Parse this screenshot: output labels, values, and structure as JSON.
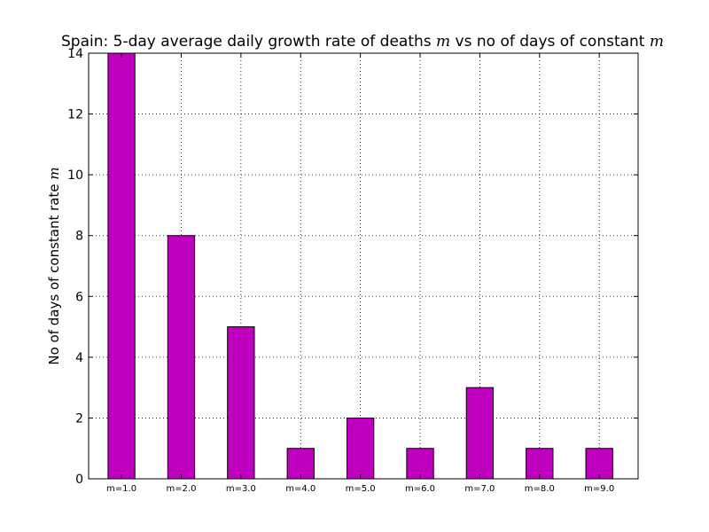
{
  "chart_data": {
    "type": "bar",
    "title_parts": [
      {
        "text": "Spain: 5-day average daily growth rate of deaths ",
        "math": false
      },
      {
        "text": "m",
        "math": true
      },
      {
        "text": " vs no of days of constant ",
        "math": false
      },
      {
        "text": "m",
        "math": true
      }
    ],
    "ylabel_parts": [
      {
        "text": "No of days of constant rate ",
        "math": false
      },
      {
        "text": "m",
        "math": true
      }
    ],
    "xlabel": "",
    "categories": [
      "m=1.0",
      "m=2.0",
      "m=3.0",
      "m=4.0",
      "m=5.0",
      "m=6.0",
      "m=7.0",
      "m=8.0",
      "m=9.0"
    ],
    "values": [
      14,
      8,
      5,
      1,
      2,
      1,
      3,
      1,
      1
    ],
    "ylim": [
      0,
      14
    ],
    "yticks": [
      0,
      2,
      4,
      6,
      8,
      10,
      12,
      14
    ],
    "x_range": [
      -0.55,
      8.65
    ],
    "grid": true,
    "bar_color": "#bf00bf",
    "edge_color": "#000000"
  }
}
